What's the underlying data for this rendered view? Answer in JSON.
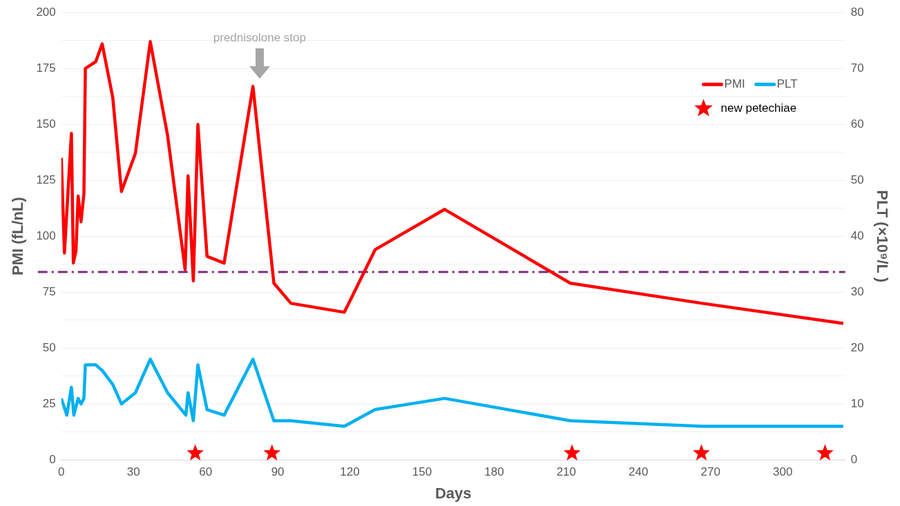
{
  "chart_data": {
    "type": "line",
    "xlabel": "Days",
    "ylabel": "PMI (fL/nL)",
    "y2label": "PLT (×10⁹/L )",
    "xlim": [
      0,
      326
    ],
    "xticks": [
      0,
      30,
      60,
      90,
      120,
      150,
      180,
      210,
      240,
      270,
      300
    ],
    "ylim": [
      0,
      200
    ],
    "yticks": [
      0,
      {
        "value": 12.5,
        "label": null
      },
      25,
      {
        "value": 37.5,
        "label": null
      },
      50,
      {
        "value": 62.5,
        "label": null
      },
      75,
      {
        "value": 87.5,
        "label": null
      },
      100,
      {
        "value": 112.5,
        "label": null
      },
      125,
      {
        "value": 137.5,
        "label": null
      },
      150,
      {
        "value": 162.5,
        "label": null
      },
      175,
      {
        "value": 187.5,
        "label": null
      },
      200
    ],
    "y2lim": [
      0,
      80
    ],
    "y2ticks": [
      0,
      10,
      20,
      30,
      40,
      50,
      60,
      70,
      80
    ],
    "grid": "y",
    "legend": "top right",
    "line_style": "solid",
    "series": [
      {
        "name": "PMI",
        "color": "#ff0000",
        "marker": "none",
        "x": [
          0,
          1.3,
          4.2,
          5,
          6.1,
          7,
          8.2,
          9.4,
          10,
          14.3,
          17,
          21.4,
          25,
          30.8,
          37,
          44.2,
          51.5,
          52.7,
          54.9,
          56.8,
          60.6,
          67.7,
          79.7,
          88.4,
          95.5,
          117.7,
          130.5,
          159.4,
          211.7,
          266.5,
          325.2
        ],
        "values": [
          135,
          92.5,
          146,
          88,
          93.5,
          118,
          106.5,
          119,
          175,
          178,
          186,
          162,
          120,
          137,
          187,
          145,
          85,
          127,
          80,
          150,
          91,
          88,
          167,
          79,
          70,
          66,
          94,
          112,
          79,
          70,
          61
        ]
      },
      {
        "name": "PLT",
        "axis": "y2",
        "color": "#00b0f0",
        "marker": "none",
        "x": [
          0,
          2.3,
          4.2,
          5.2,
          7,
          8.2,
          9.4,
          10,
          14.3,
          17,
          21.4,
          25,
          30.8,
          37,
          44.2,
          51.8,
          52.7,
          54.9,
          56.8,
          60.6,
          67.7,
          79.7,
          88.4,
          95.5,
          117.7,
          130.5,
          159.4,
          211.7,
          266.5,
          325.2
        ],
        "values": [
          11,
          8,
          13,
          8,
          11,
          10,
          11,
          17,
          17,
          16,
          13.5,
          10,
          12,
          18,
          12,
          8,
          12,
          7,
          17,
          9,
          8,
          18,
          7,
          7,
          6,
          9,
          11,
          7,
          6,
          6
        ]
      },
      {
        "name": "new petechiae",
        "type": "scatter",
        "color": "#ff0000",
        "marker": "star",
        "x": [
          55.7,
          87.6,
          212.4,
          266.2,
          317.6
        ],
        "values": [
          3,
          3,
          3,
          3,
          3
        ]
      }
    ],
    "ref_lines": [
      {
        "axis": "y",
        "value": 84,
        "color": "#7b2a7b",
        "line_style": "dashed"
      }
    ],
    "annotations": [
      "prednisolone stop"
    ]
  }
}
